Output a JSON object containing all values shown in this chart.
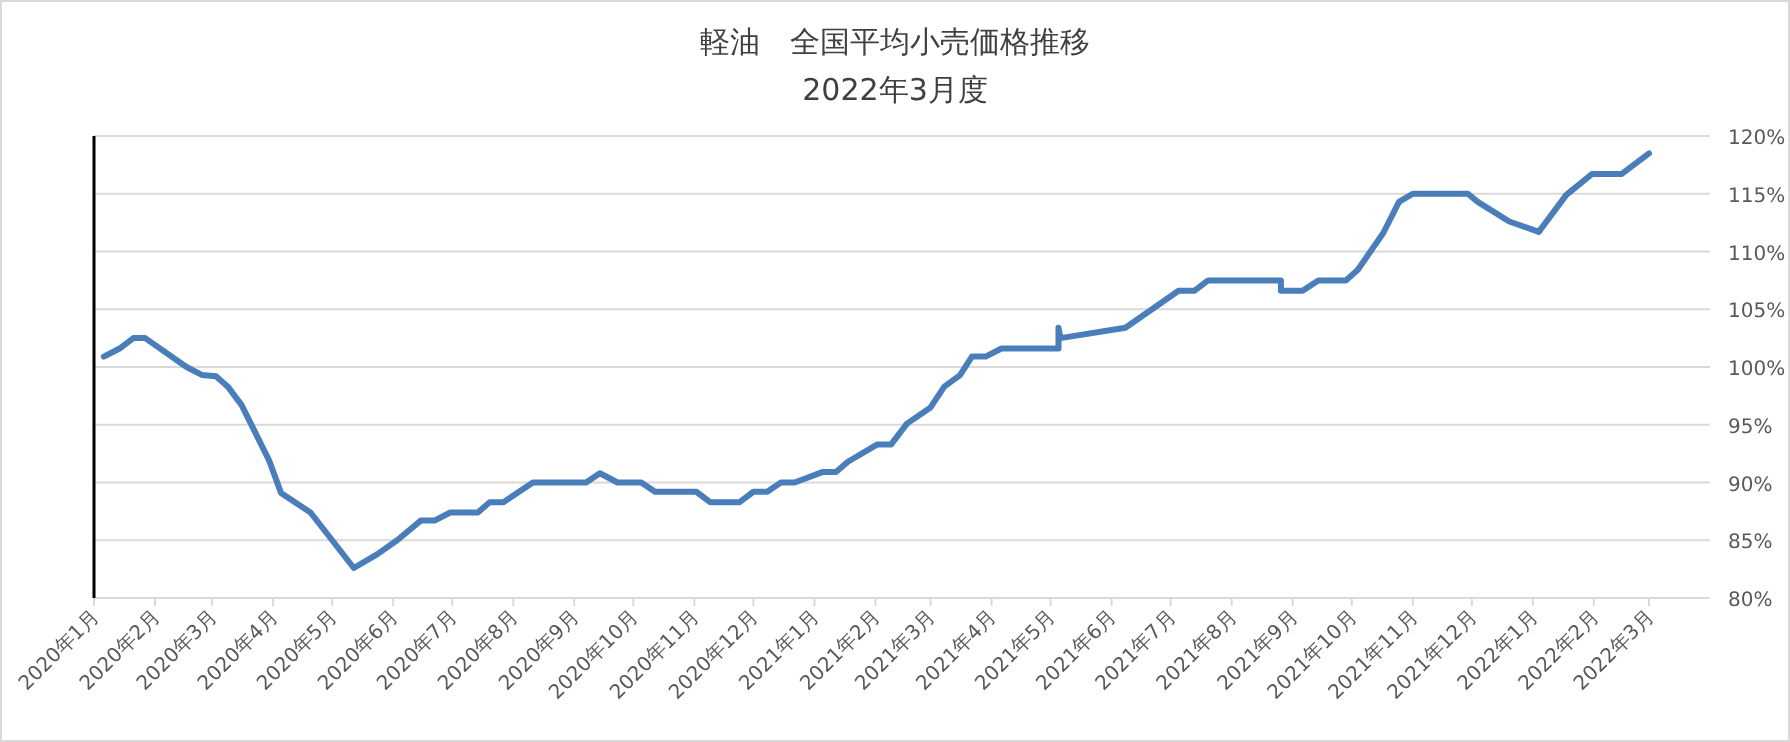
{
  "chart_data": {
    "type": "line",
    "title": "軽油　全国平均小売価格推移",
    "subtitle": "2022年3月度",
    "x": [
      "2020-01-06",
      "2020-01-14",
      "2020-01-21",
      "2020-01-27",
      "2020-02-17",
      "2020-02-25",
      "2020-03-03",
      "2020-03-09",
      "2020-03-16",
      "2020-03-30",
      "2020-04-05",
      "2020-04-20",
      "2020-05-12",
      "2020-05-24",
      "2020-06-03",
      "2020-06-15",
      "2020-06-22",
      "2020-06-30",
      "2020-07-14",
      "2020-07-20",
      "2020-07-27",
      "2020-08-11",
      "2020-09-07",
      "2020-09-14",
      "2020-09-23",
      "2020-10-05",
      "2020-10-12",
      "2020-11-02",
      "2020-11-09",
      "2020-11-24",
      "2020-12-01",
      "2020-12-08",
      "2020-12-15",
      "2020-12-22",
      "2021-01-05",
      "2021-01-12",
      "2021-01-18",
      "2021-02-02",
      "2021-02-09",
      "2021-02-17",
      "2021-03-01",
      "2021-03-08",
      "2021-03-16",
      "2021-03-22",
      "2021-03-29",
      "2021-04-06",
      "2021-05-05",
      "2021-05-05",
      "2021-05-06",
      "2021-06-08",
      "2021-07-05",
      "2021-07-13",
      "2021-07-20",
      "2021-08-26",
      "2021-08-26",
      "2021-09-06",
      "2021-09-14",
      "2021-09-28",
      "2021-10-04",
      "2021-10-17",
      "2021-10-25",
      "2021-11-01",
      "2021-11-29",
      "2021-12-04",
      "2021-12-20",
      "2022-01-04",
      "2022-01-18",
      "2022-01-31",
      "2022-02-15",
      "2022-03-01"
    ],
    "series": [
      {
        "color": "#4a7ebb",
        "values": [
          100.9,
          101.6,
          102.5,
          102.5,
          100.0,
          99.3,
          99.2,
          98.3,
          96.7,
          91.9,
          89.1,
          87.4,
          82.6,
          83.8,
          85.0,
          86.7,
          86.7,
          87.4,
          87.4,
          88.3,
          88.3,
          90.0,
          90.0,
          90.8,
          90.0,
          90.0,
          89.2,
          89.2,
          88.3,
          88.3,
          89.2,
          89.2,
          90.0,
          90.0,
          90.9,
          90.9,
          91.8,
          93.3,
          93.3,
          95.1,
          96.5,
          98.3,
          99.3,
          100.9,
          100.9,
          101.6,
          101.6,
          103.4,
          102.5,
          103.4,
          106.6,
          106.6,
          107.5,
          107.5,
          106.6,
          106.6,
          107.5,
          107.5,
          108.4,
          111.6,
          114.3,
          115.0,
          115.0,
          114.3,
          112.6,
          111.7,
          114.9,
          116.7,
          116.7,
          118.5
        ]
      }
    ],
    "xlim": [
      "2020-01-01",
      "2022-04-01"
    ],
    "xticks": [
      {
        "value": "2020-01-01",
        "label": "2020年1月"
      },
      {
        "value": "2020-02-01",
        "label": "2020年2月"
      },
      {
        "value": "2020-03-01",
        "label": "2020年3月"
      },
      {
        "value": "2020-04-01",
        "label": "2020年4月"
      },
      {
        "value": "2020-05-01",
        "label": "2020年5月"
      },
      {
        "value": "2020-06-01",
        "label": "2020年6月"
      },
      {
        "value": "2020-07-01",
        "label": "2020年7月"
      },
      {
        "value": "2020-08-01",
        "label": "2020年8月"
      },
      {
        "value": "2020-09-01",
        "label": "2020年9月"
      },
      {
        "value": "2020-10-01",
        "label": "2020年10月"
      },
      {
        "value": "2020-11-01",
        "label": "2020年11月"
      },
      {
        "value": "2020-12-01",
        "label": "2020年12月"
      },
      {
        "value": "2021-01-01",
        "label": "2021年1月"
      },
      {
        "value": "2021-02-01",
        "label": "2021年2月"
      },
      {
        "value": "2021-03-01",
        "label": "2021年3月"
      },
      {
        "value": "2021-04-01",
        "label": "2021年4月"
      },
      {
        "value": "2021-05-01",
        "label": "2021年5月"
      },
      {
        "value": "2021-06-01",
        "label": "2021年6月"
      },
      {
        "value": "2021-07-01",
        "label": "2021年7月"
      },
      {
        "value": "2021-08-01",
        "label": "2021年8月"
      },
      {
        "value": "2021-09-01",
        "label": "2021年9月"
      },
      {
        "value": "2021-10-01",
        "label": "2021年10月"
      },
      {
        "value": "2021-11-01",
        "label": "2021年11月"
      },
      {
        "value": "2021-12-01",
        "label": "2021年12月"
      },
      {
        "value": "2022-01-01",
        "label": "2022年1月"
      },
      {
        "value": "2022-02-01",
        "label": "2022年2月"
      },
      {
        "value": "2022-03-01",
        "label": "2022年3月"
      }
    ],
    "ylim": [
      80,
      120
    ],
    "yticks": [
      {
        "value": 80,
        "label": "80%"
      },
      {
        "value": 85,
        "label": "85%"
      },
      {
        "value": 90,
        "label": "90%"
      },
      {
        "value": 95,
        "label": "95%"
      },
      {
        "value": 100,
        "label": "100%"
      },
      {
        "value": 105,
        "label": "105%"
      },
      {
        "value": 110,
        "label": "110%"
      },
      {
        "value": 115,
        "label": "115%"
      },
      {
        "value": 120,
        "label": "120%"
      }
    ],
    "grid": "y",
    "marker": "none",
    "line_style": "solid"
  }
}
